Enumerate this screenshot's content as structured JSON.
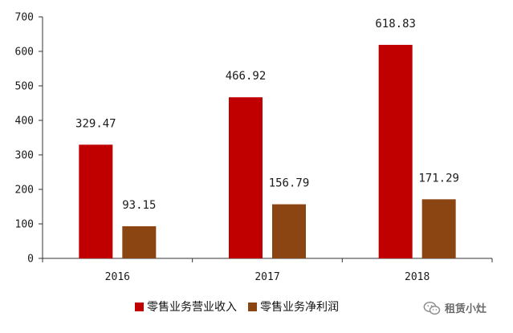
{
  "chart_data": {
    "type": "bar",
    "categories": [
      "2016",
      "2017",
      "2018"
    ],
    "series": [
      {
        "name": "零售业务营业收入",
        "color": "#c00000",
        "values": [
          329.47,
          466.92,
          618.83
        ],
        "labels": [
          "329.47",
          "466.92",
          "618.83"
        ]
      },
      {
        "name": "零售业务净利润",
        "color": "#8b4513",
        "values": [
          93.15,
          156.79,
          171.29
        ],
        "labels": [
          "93.15",
          "156.79",
          "171.29"
        ]
      }
    ],
    "yticks": [
      "0",
      "100",
      "200",
      "300",
      "400",
      "500",
      "600",
      "700"
    ],
    "ylim": [
      0,
      700
    ],
    "grid": false,
    "legend": "bottom",
    "title": "",
    "xlabel": "",
    "ylabel": ""
  },
  "watermark": {
    "text": "租赁小灶",
    "icon": "wechat-icon"
  }
}
